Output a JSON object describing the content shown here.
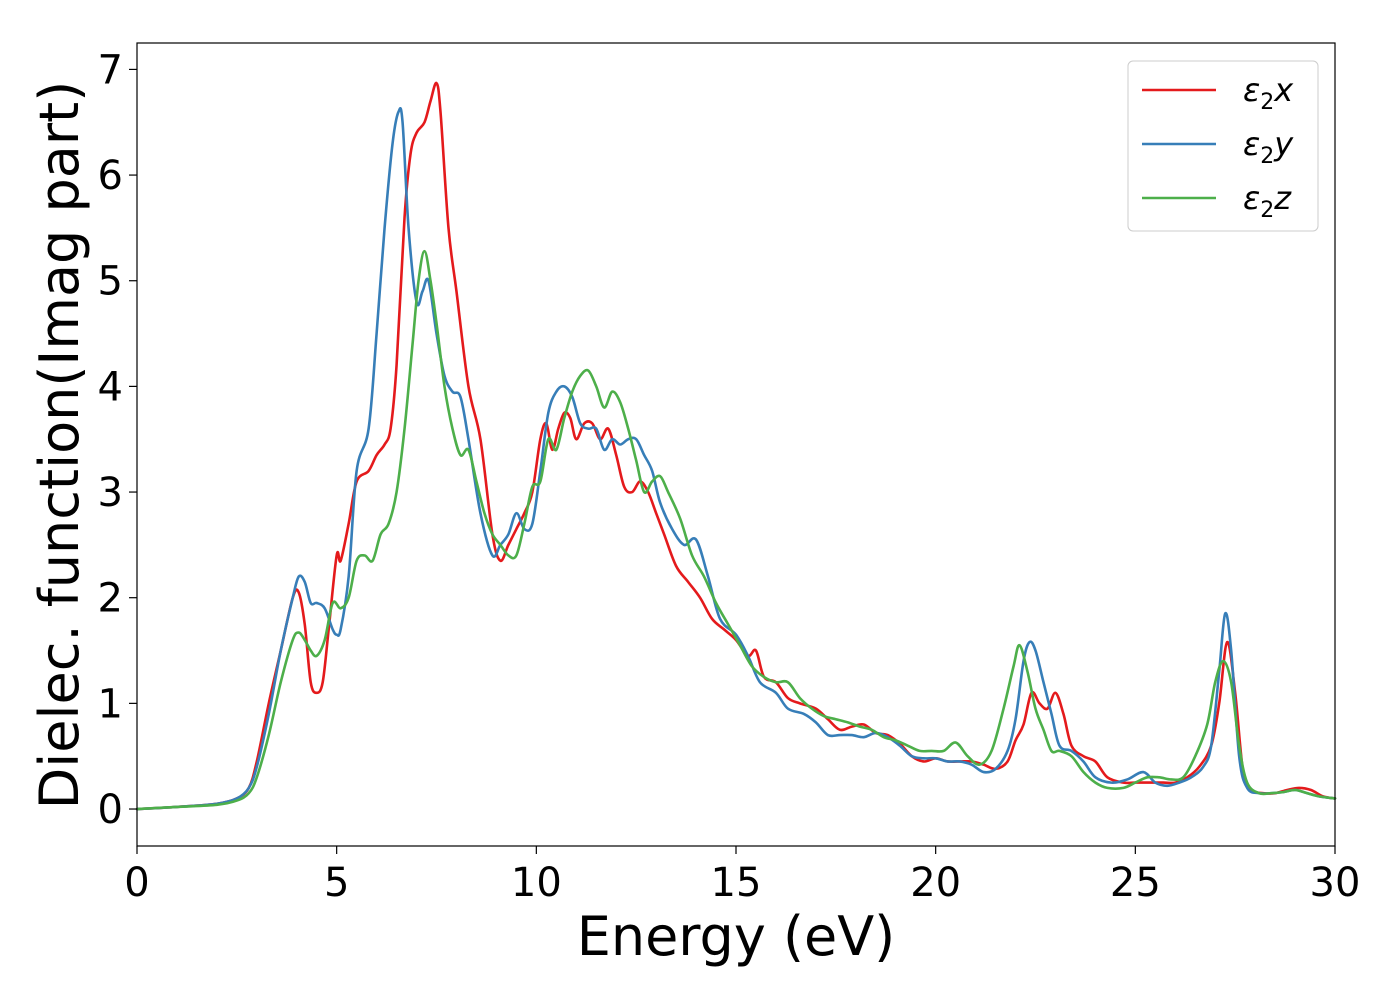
{
  "chart_data": {
    "type": "line",
    "xlabel": "Energy (eV)",
    "ylabel": "Dielec. function(Imag part)",
    "xlim": [
      0,
      30
    ],
    "ylim": [
      -0.35,
      7.25
    ],
    "xticks": [
      0,
      5,
      10,
      15,
      20,
      25,
      30
    ],
    "yticks": [
      0,
      1,
      2,
      3,
      4,
      5,
      6,
      7
    ],
    "grid": false,
    "legend_position": "top-right",
    "series": [
      {
        "name": "ε2x",
        "legend_base": "ε",
        "legend_sub": "2",
        "legend_suffix": "x",
        "color": "#e41a1c",
        "x": [
          0,
          1,
          2,
          2.5,
          2.8,
          3.0,
          3.3,
          3.6,
          3.9,
          4.05,
          4.2,
          4.35,
          4.5,
          4.65,
          4.8,
          5.0,
          5.1,
          5.3,
          5.5,
          5.8,
          6.0,
          6.2,
          6.35,
          6.5,
          6.7,
          6.85,
          7.0,
          7.2,
          7.35,
          7.5,
          7.6,
          7.8,
          8.0,
          8.3,
          8.6,
          8.9,
          9.1,
          9.3,
          9.5,
          9.7,
          9.9,
          10.1,
          10.25,
          10.4,
          10.55,
          10.7,
          10.85,
          11.0,
          11.2,
          11.4,
          11.6,
          11.8,
          12.0,
          12.2,
          12.4,
          12.6,
          12.8,
          13.0,
          13.2,
          13.5,
          13.8,
          14.1,
          14.4,
          14.7,
          15.0,
          15.3,
          15.5,
          15.7,
          16.0,
          16.3,
          16.6,
          17.0,
          17.3,
          17.6,
          17.9,
          18.2,
          18.5,
          18.8,
          19.1,
          19.4,
          19.7,
          20.0,
          20.3,
          20.6,
          20.9,
          21.2,
          21.5,
          21.8,
          22.0,
          22.2,
          22.4,
          22.6,
          22.8,
          23.0,
          23.2,
          23.4,
          23.7,
          24.0,
          24.3,
          24.7,
          25.0,
          25.4,
          25.7,
          26.0,
          26.3,
          26.6,
          26.9,
          27.1,
          27.3,
          27.5,
          27.7,
          27.9,
          28.2,
          28.5,
          28.8,
          29.1,
          29.4,
          29.7,
          30
        ],
        "y": [
          0.0,
          0.02,
          0.05,
          0.1,
          0.2,
          0.45,
          1.0,
          1.5,
          2.0,
          2.05,
          1.75,
          1.2,
          1.1,
          1.2,
          1.7,
          2.4,
          2.35,
          2.7,
          3.1,
          3.2,
          3.35,
          3.45,
          3.6,
          4.2,
          5.6,
          6.2,
          6.4,
          6.5,
          6.7,
          6.87,
          6.6,
          5.5,
          4.9,
          4.0,
          3.5,
          2.6,
          2.35,
          2.5,
          2.65,
          2.8,
          3.0,
          3.5,
          3.65,
          3.4,
          3.6,
          3.75,
          3.7,
          3.5,
          3.65,
          3.65,
          3.5,
          3.6,
          3.35,
          3.05,
          3.0,
          3.1,
          3.0,
          2.8,
          2.6,
          2.3,
          2.15,
          2.0,
          1.8,
          1.7,
          1.6,
          1.45,
          1.5,
          1.25,
          1.2,
          1.05,
          1.0,
          0.95,
          0.85,
          0.75,
          0.78,
          0.8,
          0.72,
          0.7,
          0.62,
          0.5,
          0.45,
          0.48,
          0.45,
          0.45,
          0.45,
          0.42,
          0.38,
          0.45,
          0.65,
          0.8,
          1.1,
          1.0,
          0.95,
          1.1,
          0.9,
          0.6,
          0.5,
          0.45,
          0.3,
          0.25,
          0.25,
          0.25,
          0.25,
          0.25,
          0.3,
          0.4,
          0.6,
          1.0,
          1.58,
          1.1,
          0.35,
          0.18,
          0.15,
          0.15,
          0.18,
          0.2,
          0.18,
          0.12,
          0.1
        ]
      },
      {
        "name": "ε2y",
        "legend_base": "ε",
        "legend_sub": "2",
        "legend_suffix": "y",
        "color": "#377eb8",
        "x": [
          0,
          1,
          2,
          2.5,
          2.8,
          3.0,
          3.3,
          3.6,
          3.9,
          4.05,
          4.2,
          4.35,
          4.5,
          4.7,
          4.9,
          5.0,
          5.1,
          5.3,
          5.5,
          5.8,
          6.0,
          6.2,
          6.4,
          6.55,
          6.65,
          6.8,
          7.0,
          7.15,
          7.3,
          7.5,
          7.7,
          7.9,
          8.1,
          8.3,
          8.6,
          8.9,
          9.1,
          9.3,
          9.5,
          9.7,
          9.9,
          10.1,
          10.3,
          10.5,
          10.7,
          10.9,
          11.1,
          11.3,
          11.5,
          11.7,
          11.9,
          12.1,
          12.3,
          12.5,
          12.7,
          12.9,
          13.1,
          13.4,
          13.7,
          14.0,
          14.3,
          14.6,
          15.0,
          15.3,
          15.6,
          16.0,
          16.3,
          16.7,
          17.0,
          17.3,
          17.6,
          17.9,
          18.2,
          18.5,
          18.8,
          19.1,
          19.4,
          19.7,
          20.0,
          20.3,
          20.6,
          20.9,
          21.2,
          21.5,
          21.8,
          22.0,
          22.2,
          22.35,
          22.5,
          22.7,
          22.9,
          23.1,
          23.4,
          23.7,
          24.0,
          24.4,
          24.8,
          25.2,
          25.5,
          25.8,
          26.1,
          26.4,
          26.7,
          26.9,
          27.1,
          27.25,
          27.4,
          27.6,
          27.8,
          28.1,
          28.4,
          28.7,
          29.0,
          29.3,
          29.6,
          30
        ],
        "y": [
          0.0,
          0.02,
          0.05,
          0.1,
          0.2,
          0.4,
          0.9,
          1.5,
          2.0,
          2.2,
          2.15,
          1.95,
          1.95,
          1.9,
          1.7,
          1.65,
          1.7,
          2.2,
          3.2,
          3.6,
          4.5,
          5.5,
          6.3,
          6.6,
          6.5,
          5.5,
          4.8,
          4.9,
          5.0,
          4.5,
          4.1,
          3.95,
          3.9,
          3.5,
          2.8,
          2.4,
          2.5,
          2.6,
          2.8,
          2.65,
          2.7,
          3.2,
          3.75,
          3.95,
          4.0,
          3.9,
          3.65,
          3.6,
          3.6,
          3.4,
          3.5,
          3.45,
          3.5,
          3.5,
          3.35,
          3.2,
          2.9,
          2.65,
          2.5,
          2.55,
          2.2,
          1.8,
          1.65,
          1.45,
          1.2,
          1.1,
          0.95,
          0.9,
          0.82,
          0.7,
          0.7,
          0.7,
          0.68,
          0.72,
          0.68,
          0.6,
          0.5,
          0.48,
          0.48,
          0.45,
          0.45,
          0.42,
          0.35,
          0.38,
          0.55,
          0.85,
          1.4,
          1.58,
          1.5,
          1.2,
          0.9,
          0.6,
          0.55,
          0.45,
          0.3,
          0.25,
          0.28,
          0.35,
          0.25,
          0.22,
          0.25,
          0.3,
          0.4,
          0.6,
          1.3,
          1.85,
          1.5,
          0.5,
          0.2,
          0.15,
          0.15,
          0.16,
          0.18,
          0.15,
          0.12,
          0.1
        ]
      },
      {
        "name": "ε2z",
        "legend_base": "ε",
        "legend_sub": "2",
        "legend_suffix": "z",
        "color": "#4daf4a",
        "x": [
          0,
          1,
          2,
          2.5,
          2.8,
          3.0,
          3.3,
          3.6,
          3.9,
          4.05,
          4.2,
          4.35,
          4.5,
          4.7,
          4.9,
          5.1,
          5.3,
          5.5,
          5.7,
          5.9,
          6.1,
          6.3,
          6.5,
          6.7,
          6.9,
          7.05,
          7.2,
          7.35,
          7.5,
          7.7,
          7.9,
          8.1,
          8.3,
          8.5,
          8.7,
          8.9,
          9.1,
          9.3,
          9.5,
          9.7,
          9.9,
          10.1,
          10.3,
          10.5,
          10.7,
          10.9,
          11.1,
          11.3,
          11.5,
          11.7,
          11.9,
          12.1,
          12.3,
          12.5,
          12.7,
          12.9,
          13.1,
          13.3,
          13.6,
          13.9,
          14.2,
          14.5,
          14.8,
          15.1,
          15.4,
          15.7,
          16.0,
          16.3,
          16.6,
          16.9,
          17.2,
          17.5,
          17.8,
          18.1,
          18.4,
          18.7,
          19.0,
          19.3,
          19.6,
          19.9,
          20.2,
          20.5,
          20.8,
          21.1,
          21.4,
          21.7,
          21.95,
          22.1,
          22.3,
          22.5,
          22.7,
          22.9,
          23.1,
          23.4,
          23.7,
          24.0,
          24.3,
          24.7,
          25.0,
          25.3,
          25.6,
          25.9,
          26.2,
          26.5,
          26.8,
          27.0,
          27.2,
          27.4,
          27.6,
          27.8,
          28.1,
          28.4,
          28.7,
          29.0,
          29.3,
          29.6,
          30
        ],
        "y": [
          0.0,
          0.02,
          0.04,
          0.08,
          0.15,
          0.3,
          0.7,
          1.2,
          1.6,
          1.67,
          1.6,
          1.5,
          1.45,
          1.6,
          1.95,
          1.9,
          2.0,
          2.35,
          2.4,
          2.35,
          2.6,
          2.7,
          3.0,
          3.6,
          4.4,
          5.0,
          5.28,
          5.0,
          4.6,
          4.0,
          3.6,
          3.35,
          3.4,
          3.1,
          2.8,
          2.6,
          2.5,
          2.4,
          2.4,
          2.7,
          3.05,
          3.1,
          3.5,
          3.4,
          3.7,
          3.95,
          4.1,
          4.15,
          4.0,
          3.8,
          3.95,
          3.85,
          3.6,
          3.3,
          3.0,
          3.1,
          3.15,
          3.0,
          2.75,
          2.4,
          2.2,
          1.95,
          1.75,
          1.55,
          1.35,
          1.25,
          1.2,
          1.2,
          1.05,
          0.95,
          0.88,
          0.85,
          0.82,
          0.78,
          0.75,
          0.68,
          0.65,
          0.6,
          0.55,
          0.55,
          0.55,
          0.63,
          0.5,
          0.42,
          0.55,
          0.95,
          1.35,
          1.55,
          1.3,
          0.95,
          0.75,
          0.55,
          0.55,
          0.5,
          0.35,
          0.25,
          0.2,
          0.2,
          0.25,
          0.3,
          0.3,
          0.28,
          0.3,
          0.5,
          0.8,
          1.2,
          1.4,
          1.2,
          0.6,
          0.25,
          0.15,
          0.15,
          0.16,
          0.18,
          0.15,
          0.12,
          0.1
        ]
      }
    ]
  }
}
